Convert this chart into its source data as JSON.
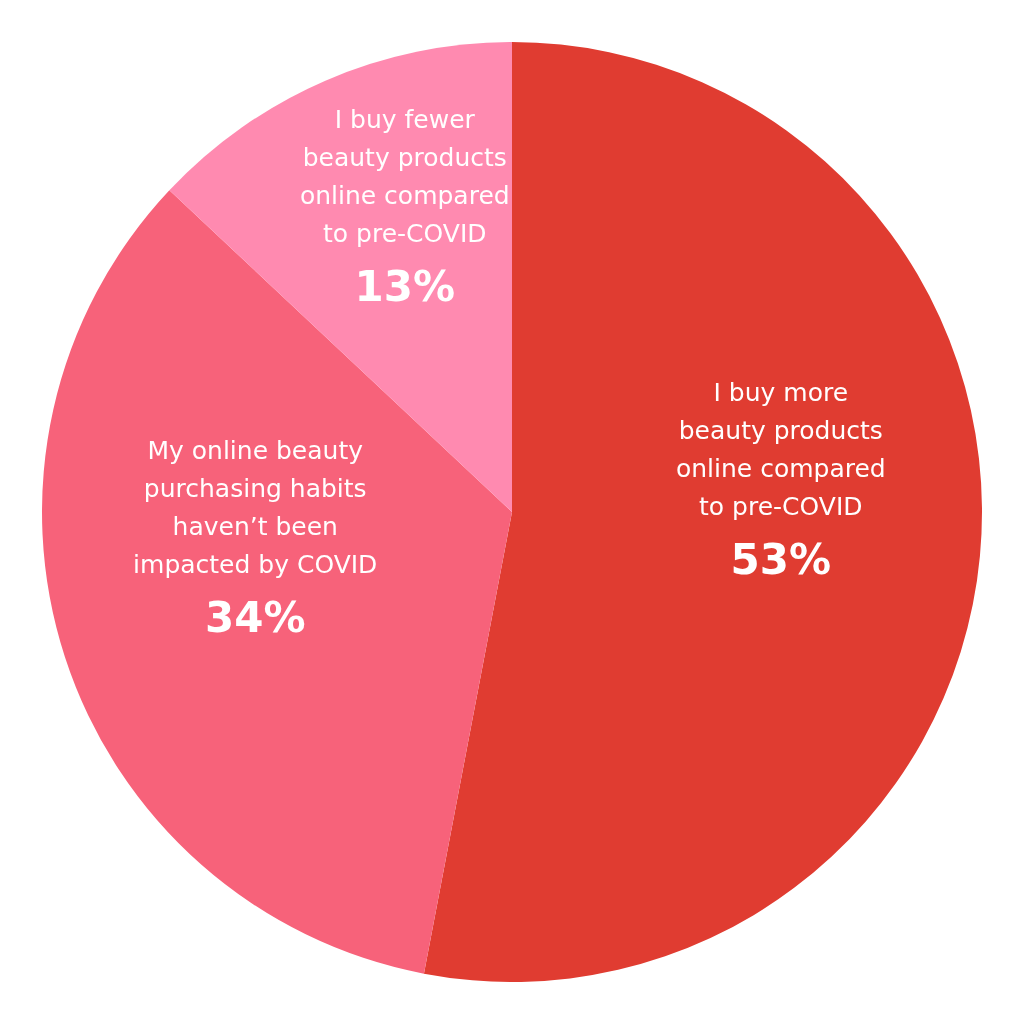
{
  "chart_data": {
    "type": "pie",
    "categories": [
      "I buy more\nbeauty products\nonline compared\nto pre-COVID",
      "My online beauty\npurchasing habits\nhaven’t been\nimpacted by COVID",
      "I buy fewer\nbeauty products\nonline compared\nto pre-COVID"
    ],
    "values": [
      53,
      34,
      13
    ],
    "colors": [
      "#e03c31",
      "#f7627a",
      "#ff8ab0"
    ],
    "value_labels": [
      "53%",
      "34%",
      "13%"
    ]
  }
}
